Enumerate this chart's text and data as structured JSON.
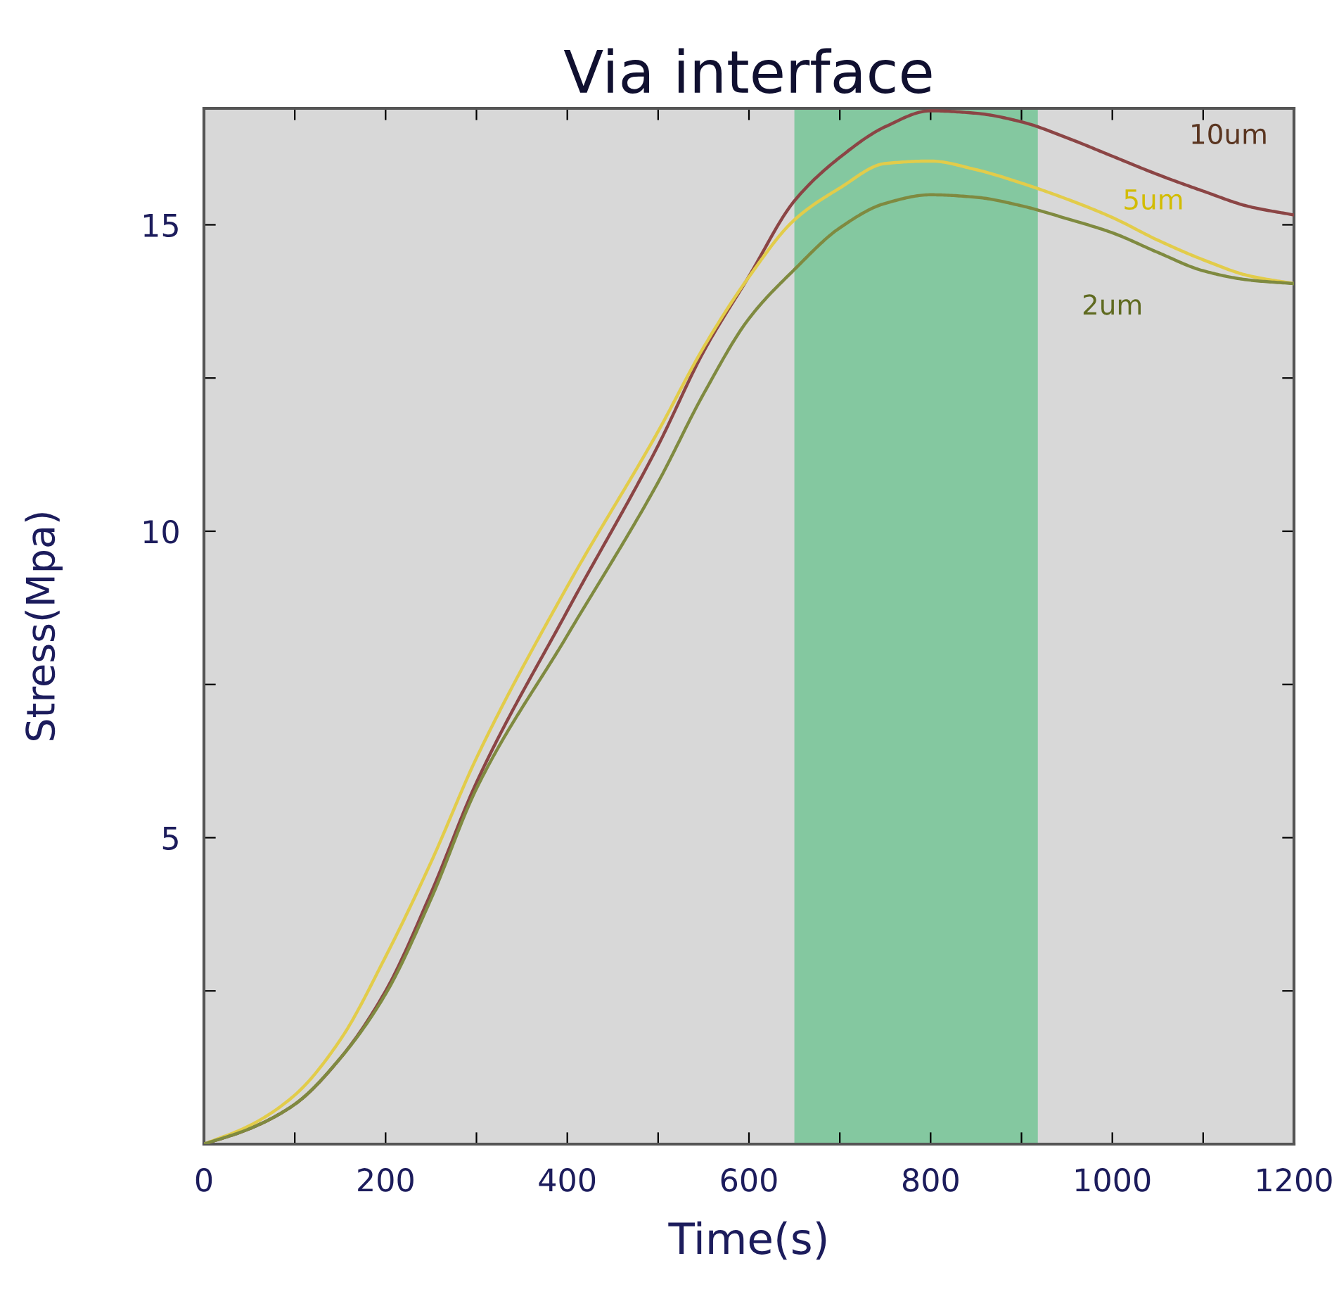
{
  "chart_data": {
    "type": "line",
    "title": "Via interface",
    "xlabel": "Time(s)",
    "ylabel": "Stress(Mpa)",
    "x": [
      0,
      50,
      100,
      150,
      200,
      250,
      300,
      400,
      500,
      550,
      600,
      650,
      700,
      750,
      800,
      850,
      900,
      950,
      1000,
      1050,
      1100,
      1150,
      1200
    ],
    "series": [
      {
        "name": "10um",
        "color": "#8b4545",
        "values": [
          0,
          0.25,
          0.65,
          1.4,
          2.5,
          4.1,
          5.9,
          8.7,
          11.4,
          12.93,
          14.16,
          15.39,
          16.1,
          16.6,
          16.86,
          16.82,
          16.68,
          16.42,
          16.12,
          15.82,
          15.55,
          15.3,
          15.16
        ]
      },
      {
        "name": "5um",
        "color": "#e2cc4a",
        "values": [
          0,
          0.3,
          0.8,
          1.7,
          3.06,
          4.6,
          6.3,
          9.1,
          11.63,
          13.0,
          14.15,
          15.08,
          15.6,
          16.0,
          16.04,
          15.9,
          15.68,
          15.42,
          15.12,
          14.75,
          14.43,
          14.17,
          14.04
        ]
      },
      {
        "name": "2um",
        "color": "#7f8a40",
        "values": [
          0,
          0.25,
          0.65,
          1.4,
          2.45,
          4.0,
          5.8,
          8.3,
          10.8,
          12.24,
          13.47,
          14.27,
          14.95,
          15.35,
          15.49,
          15.45,
          15.31,
          15.1,
          14.87,
          14.55,
          14.25,
          14.1,
          14.04
        ]
      }
    ],
    "xlim": [
      0,
      1200
    ],
    "ylim": [
      0,
      16.9
    ],
    "xticks": [
      0,
      {
        "value": 100,
        "label": null
      },
      200,
      {
        "value": 300,
        "label": null
      },
      400,
      {
        "value": 500,
        "label": null
      },
      600,
      {
        "value": 700,
        "label": null
      },
      800,
      {
        "value": 900,
        "label": null
      },
      1000,
      {
        "value": 1100,
        "label": null
      },
      1200
    ],
    "yticks": [
      {
        "value": 2.5,
        "label": null
      },
      5,
      {
        "value": 7.5,
        "label": null
      },
      10,
      {
        "value": 12.5,
        "label": null
      },
      15
    ],
    "bands": [
      {
        "axis": "x",
        "from": 650,
        "to": 918,
        "color": "#84c8a0"
      }
    ],
    "grid": false,
    "legend": false,
    "marker": "none",
    "line_style": "solid"
  }
}
